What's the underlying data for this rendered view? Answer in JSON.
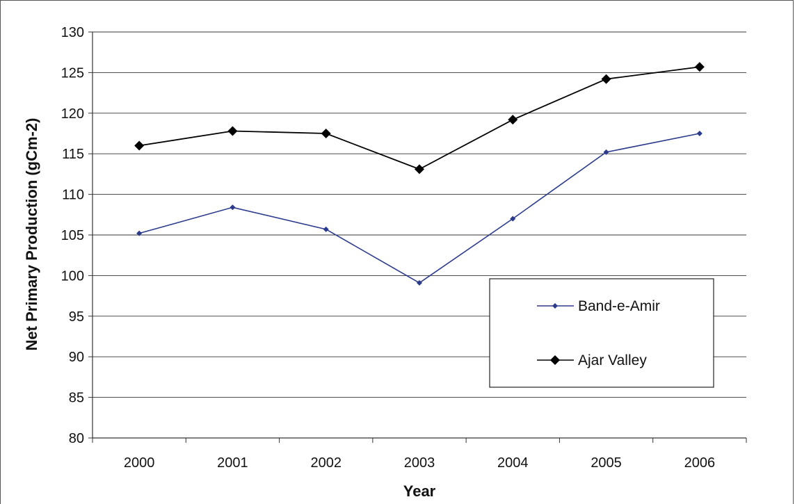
{
  "chart_data": {
    "type": "line",
    "xlabel": "Year",
    "ylabel": "Net Primary Production (gCm-2)",
    "categories": [
      "2000",
      "2001",
      "2002",
      "2003",
      "2004",
      "2005",
      "2006"
    ],
    "ylim": [
      80,
      130
    ],
    "yticks": [
      80,
      85,
      90,
      95,
      100,
      105,
      110,
      115,
      120,
      125,
      130
    ],
    "grid": true,
    "legend_position": "right",
    "series": [
      {
        "name": "Band-e-Amir",
        "values": [
          105.2,
          108.4,
          105.7,
          99.1,
          107.0,
          115.2,
          117.5
        ],
        "color": "#2b3a8c",
        "marker": "small-diamond"
      },
      {
        "name": "Ajar Valley",
        "values": [
          116.0,
          117.8,
          117.5,
          113.1,
          119.2,
          124.2,
          125.7
        ],
        "color": "#000000",
        "marker": "large-diamond"
      }
    ]
  }
}
